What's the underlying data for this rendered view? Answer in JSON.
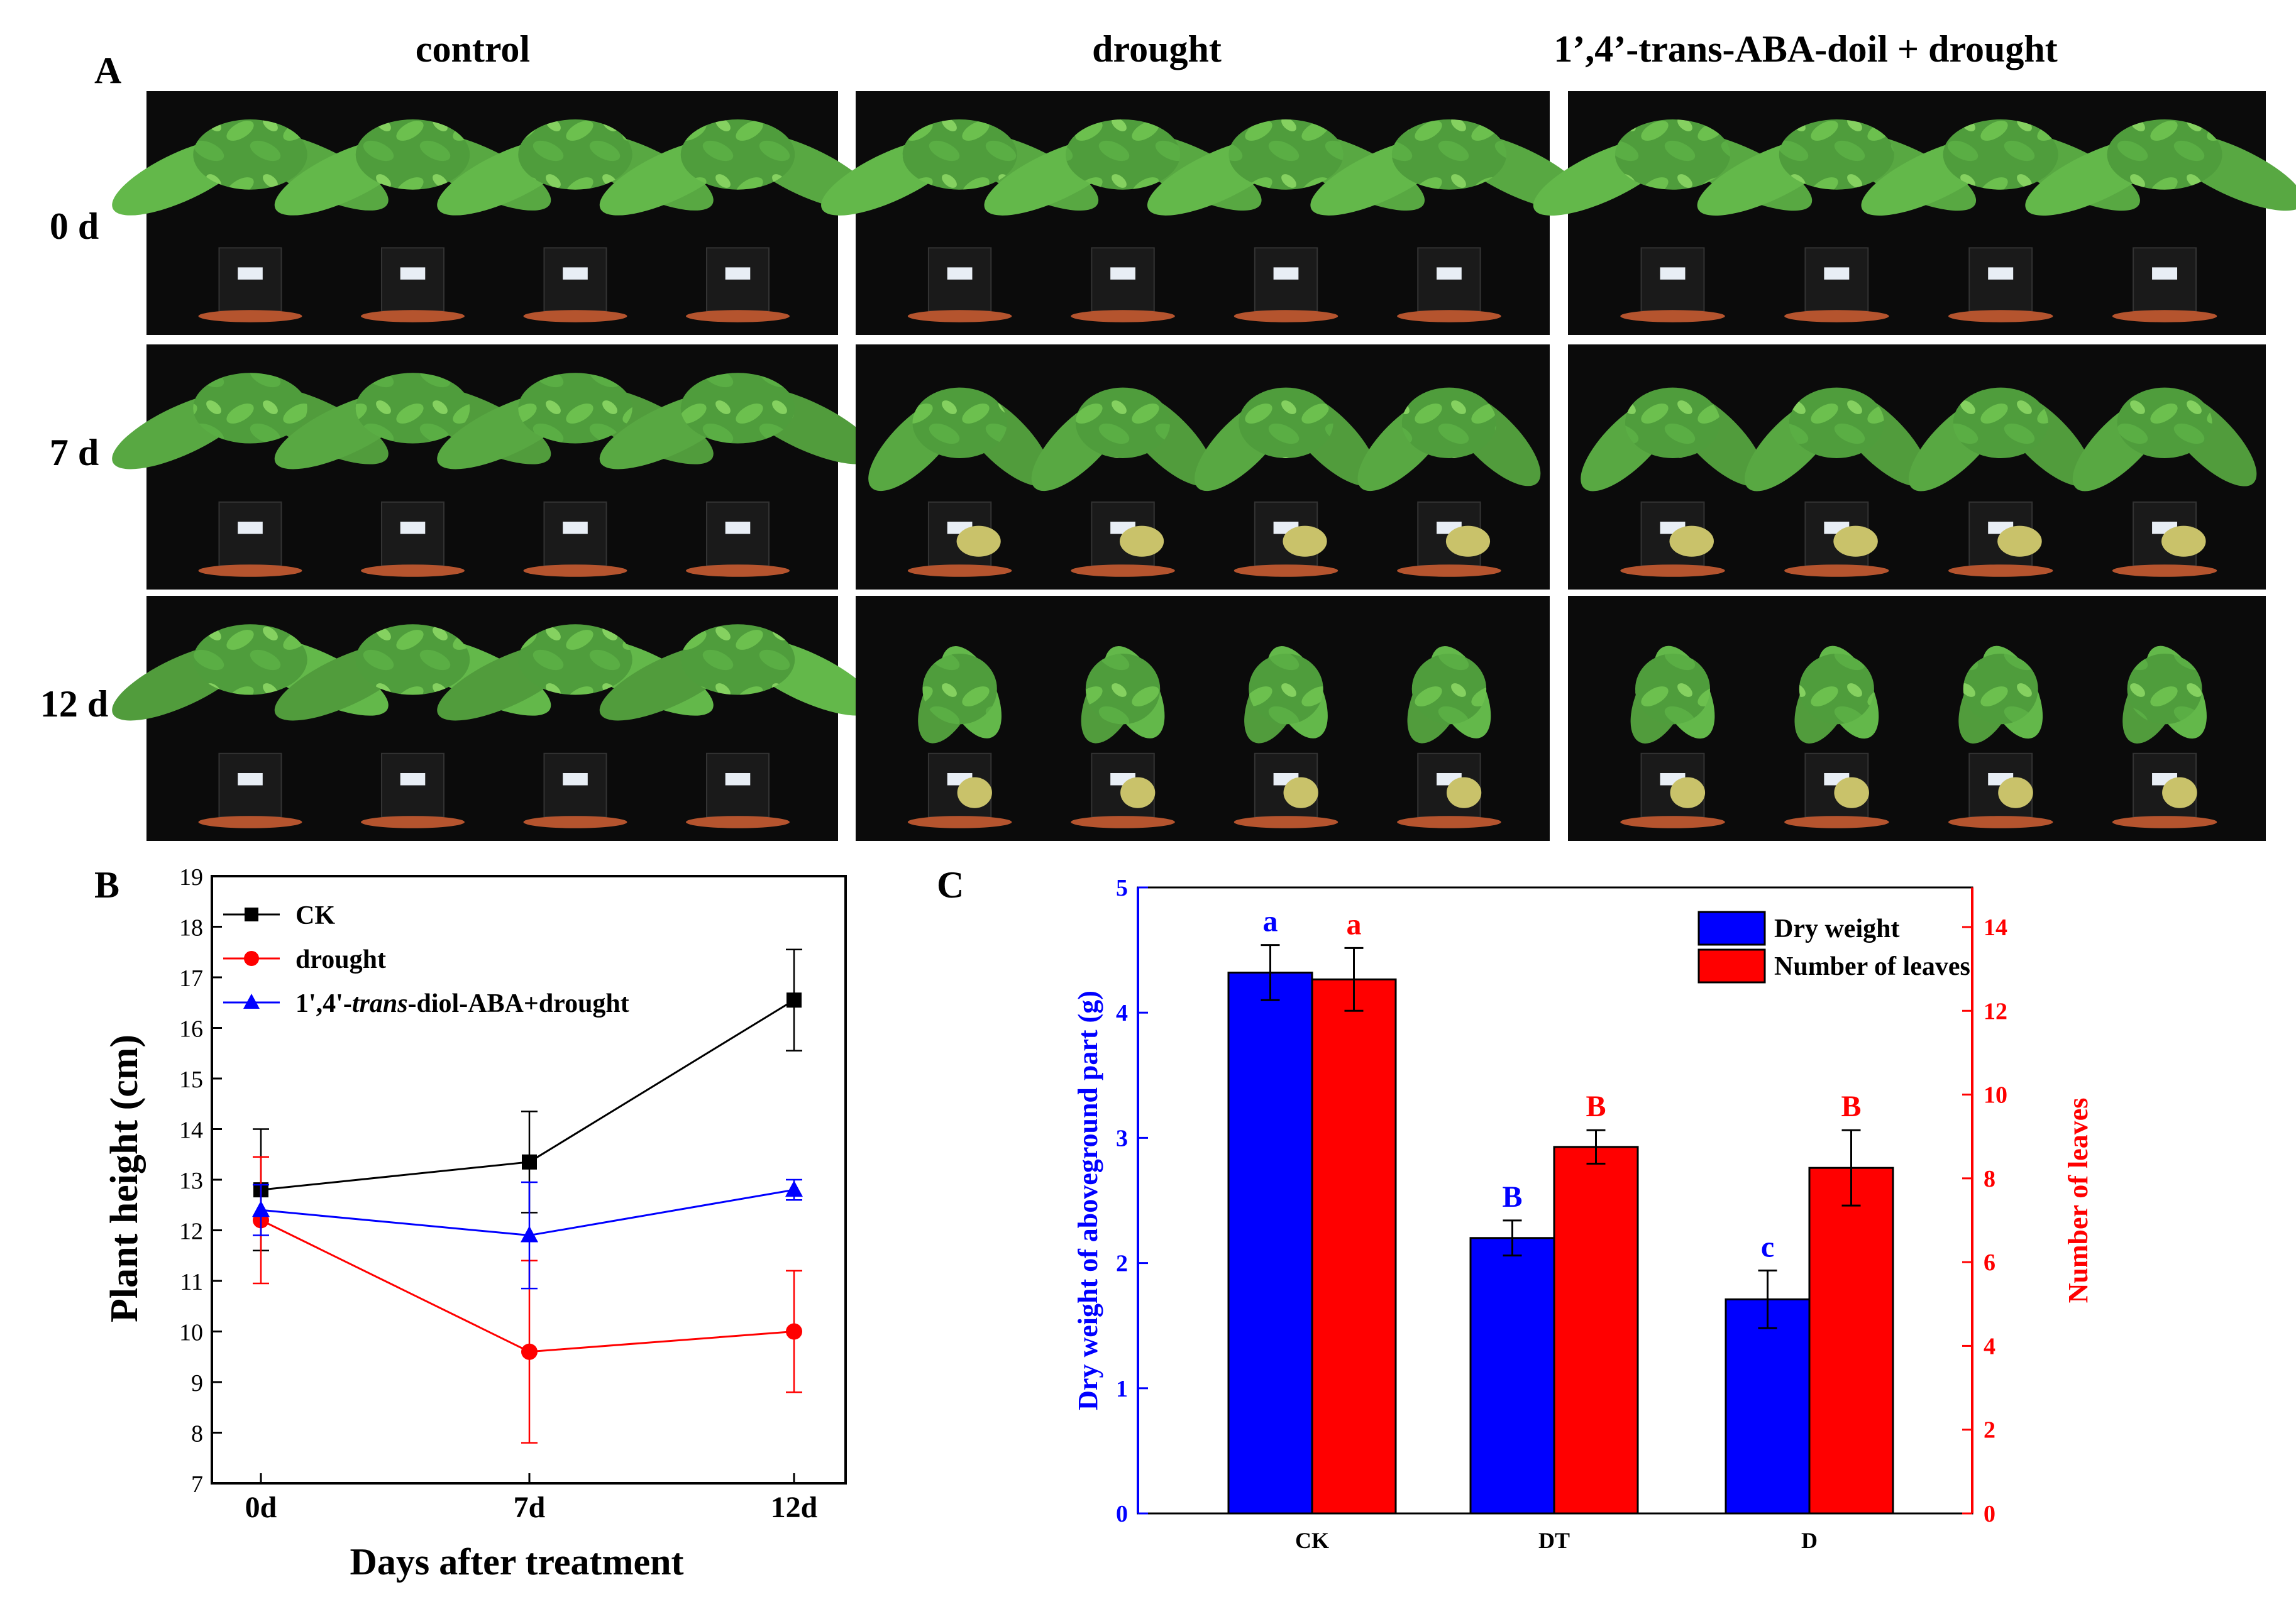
{
  "panel_a": {
    "label": "A",
    "columns": [
      "control",
      "drought",
      "1’,4’-trans-ABA-doil + drought"
    ],
    "rows": [
      "0 d",
      "7 d",
      "12 d"
    ]
  },
  "chart_data": [
    {
      "panel": "B",
      "type": "line",
      "x": [
        "0d",
        "7d",
        "12d"
      ],
      "xlabel": "Days  after treatment",
      "ylabel": "Plant height (cm)",
      "ylim": [
        7,
        19
      ],
      "yticks": [
        7,
        8,
        9,
        10,
        11,
        12,
        13,
        14,
        15,
        16,
        17,
        18,
        19
      ],
      "grid": false,
      "legend": "top-left",
      "series": [
        {
          "name": "CK",
          "values": [
            12.8,
            13.35,
            16.55
          ],
          "err": [
            1.2,
            1.0,
            1.0
          ],
          "color": "#000000",
          "marker": "square"
        },
        {
          "name": "drought",
          "values": [
            12.2,
            9.6,
            10.0
          ],
          "err": [
            1.25,
            1.8,
            1.2
          ],
          "color": "#ff0000",
          "marker": "circle"
        },
        {
          "name": "1',4'-trans-diol-ABA+drought",
          "values": [
            12.4,
            11.9,
            12.8
          ],
          "err": [
            0.5,
            1.05,
            0.2
          ],
          "color": "#0000ff",
          "marker": "triangle"
        }
      ]
    },
    {
      "panel": "C",
      "type": "bar",
      "categories": [
        "CK",
        "DT",
        "D"
      ],
      "ylabel": "Dry weight of aboveground part (g)",
      "y2label": "Number of leaves",
      "ylim": [
        0,
        5
      ],
      "yticks": [
        0,
        1,
        2,
        3,
        4,
        5
      ],
      "y2lim": [
        0,
        15
      ],
      "y2ticks": [
        0,
        2,
        4,
        6,
        8,
        10,
        12,
        14
      ],
      "legend": "top-right",
      "series": [
        {
          "name": "Dry weight",
          "axis": "left",
          "values": [
            4.32,
            2.2,
            1.71
          ],
          "err": [
            0.22,
            0.14,
            0.23
          ],
          "letters": [
            "a",
            "B",
            "c"
          ],
          "color": "#0000ff"
        },
        {
          "name": "Number of leaves",
          "axis": "right",
          "values": [
            12.75,
            8.75,
            8.25
          ],
          "err": [
            0.75,
            0.4,
            0.9
          ],
          "letters": [
            "a",
            "B",
            "B"
          ],
          "color": "#ff0000"
        }
      ]
    }
  ]
}
